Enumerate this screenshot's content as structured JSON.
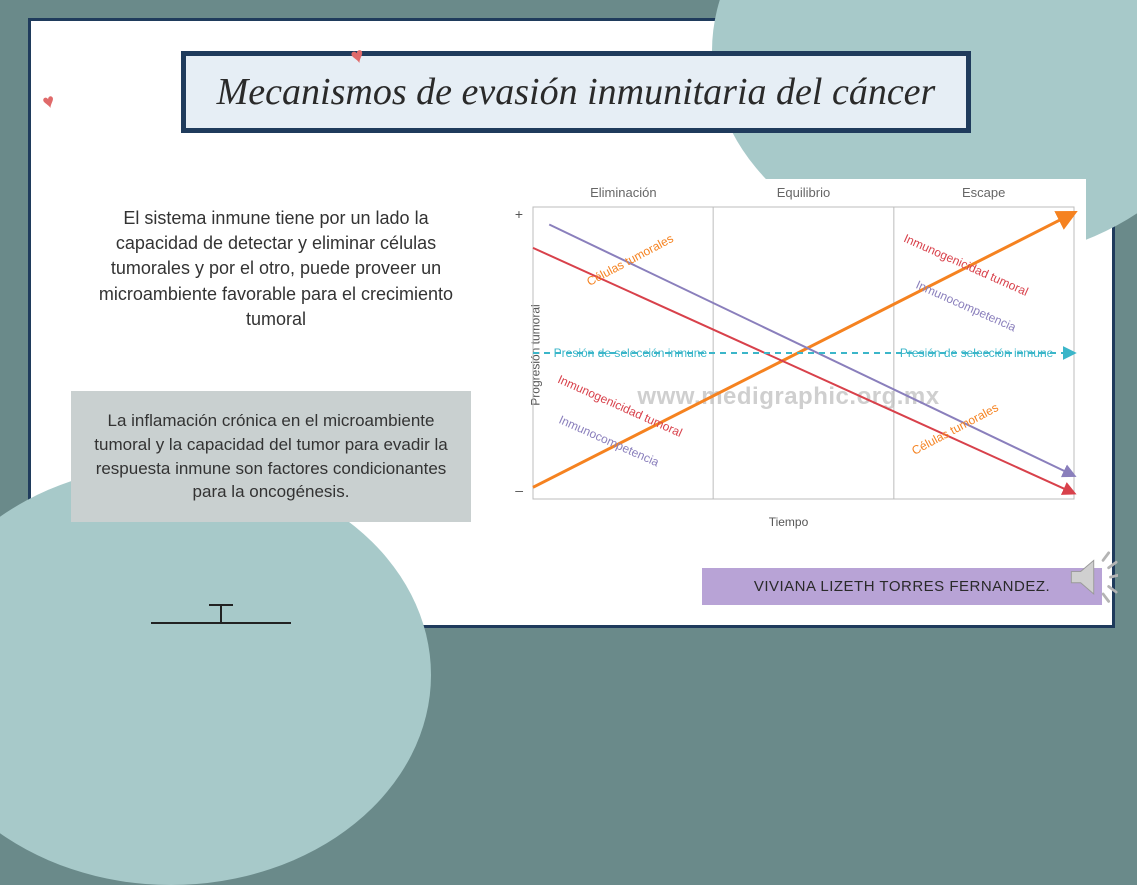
{
  "colors": {
    "frame_border": "#1f3b5c",
    "title_bg": "#e6eef5",
    "heart": "#e06a6a",
    "para2_bg": "#c9d0d0",
    "author_bg": "#b8a3d6",
    "teal_blob": "#a7c9c9",
    "outer_bg": "#6a8a8a"
  },
  "title": "Mecanismos de evasión inmunitaria del cáncer",
  "paragraph1": "El sistema inmune tiene por un lado la capacidad de detectar y eliminar células tumorales y por el otro, puede proveer un microambiente favorable para el crecimiento tumoral",
  "paragraph2": "La inflamación crónica en el microambiente tumoral y la capacidad del tumor para evadir la respuesta inmune son factores condicionantes para la oncogénesis.",
  "author": "VIVIANA LIZETH TORRES FERNANDEZ.",
  "chart": {
    "type": "line",
    "background_color": "#ffffff",
    "plot_border_color": "#bcbcbc",
    "grid_color": "#bcbcbc",
    "x_axis_label": "Tiempo",
    "y_axis_label": "Progresión tumoral",
    "y_tick_low": "–",
    "y_tick_high": "+",
    "phases": [
      "Eliminación",
      "Equilibrio",
      "Escape"
    ],
    "phase_positions_pct": [
      16.7,
      50,
      83.3
    ],
    "watermark": "www.medigraphic.org.mx",
    "plot": {
      "x_min": 0,
      "x_max": 100,
      "y_min": 0,
      "y_max": 100,
      "vlines_x": [
        33.3,
        66.7
      ]
    },
    "series": [
      {
        "name": "celulas_tumorales",
        "label": "Células tumorales",
        "color": "#f58220",
        "stroke_width": 3,
        "arrow": true,
        "x1": 0,
        "y1": 4,
        "x2": 100,
        "y2": 98,
        "label_left": {
          "x_pct": 18,
          "y_pct": 82,
          "rotate_deg": -28
        },
        "label_right": {
          "x_pct": 78,
          "y_pct": 24,
          "rotate_deg": -28
        }
      },
      {
        "name": "inmunocompetencia",
        "label": "Inmunocompetencia",
        "color": "#8a7fbc",
        "stroke_width": 2,
        "arrow": true,
        "x1": 3,
        "y1": 94,
        "x2": 100,
        "y2": 8,
        "label_left": {
          "x_pct": 14,
          "y_pct": 20,
          "rotate_deg": 24
        },
        "label_right": {
          "x_pct": 80,
          "y_pct": 66,
          "rotate_deg": 24
        }
      },
      {
        "name": "inmunogenicidad_tumoral",
        "label": "Inmunogenicidad tumoral",
        "color": "#d8414b",
        "stroke_width": 2,
        "arrow": true,
        "x1": 0,
        "y1": 86,
        "x2": 100,
        "y2": 2,
        "label_left": {
          "x_pct": 16,
          "y_pct": 32,
          "rotate_deg": 24
        },
        "label_right": {
          "x_pct": 80,
          "y_pct": 80,
          "rotate_deg": 24
        }
      },
      {
        "name": "presion_seleccion_inmune",
        "label": "Presión de selección inmune",
        "color": "#3bb6c9",
        "stroke_width": 2,
        "dash": "6,5",
        "arrow": true,
        "x1": 0,
        "y1": 50,
        "x2": 100,
        "y2": 50,
        "label_left": {
          "x_pct": 18,
          "y_pct": 50,
          "rotate_deg": 0
        },
        "label_right": {
          "x_pct": 82,
          "y_pct": 50,
          "rotate_deg": 0
        }
      }
    ]
  }
}
